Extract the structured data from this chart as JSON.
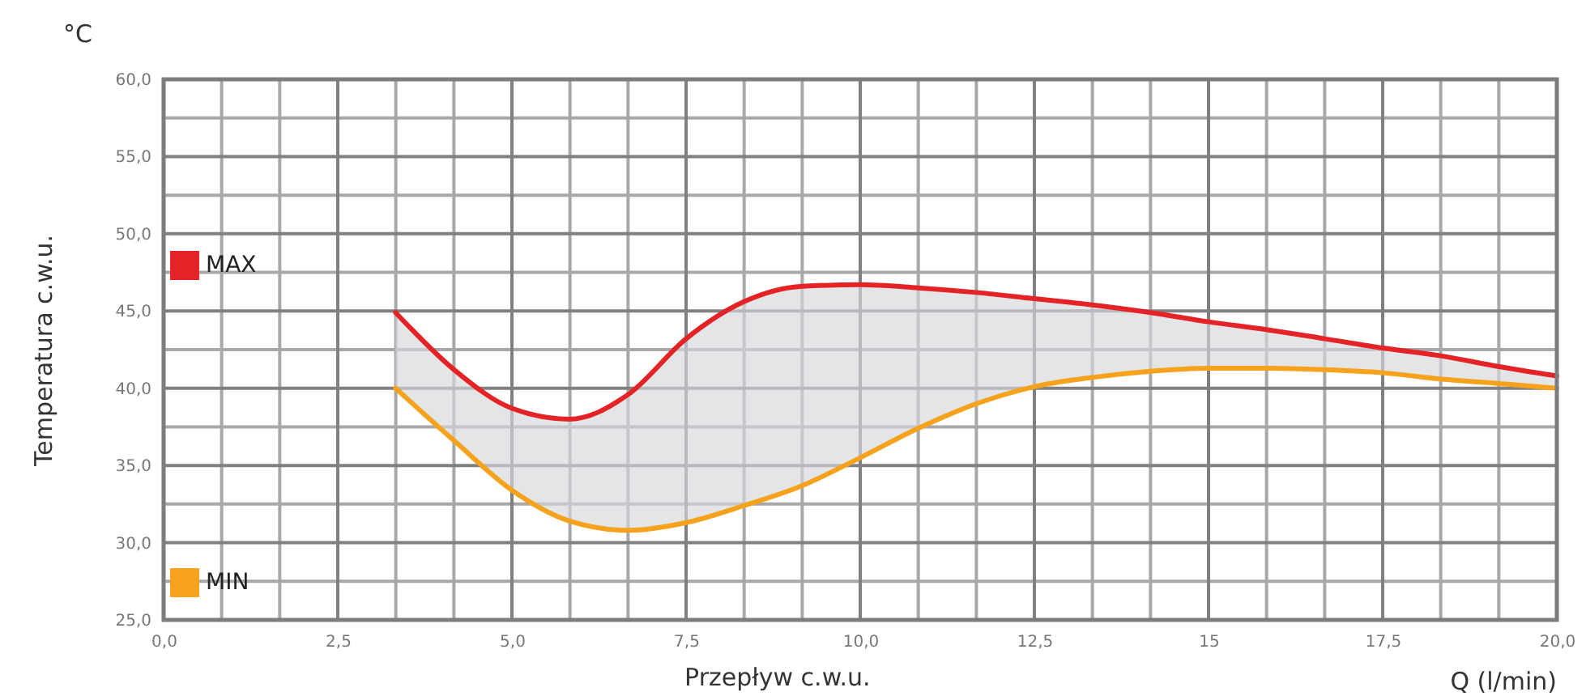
{
  "chart_data": {
    "type": "line",
    "ylabel": "Temperatura c.w.u.",
    "xlabel": "Przepływ c.w.u.",
    "annotations": [
      "°C",
      "Q (l/min)"
    ],
    "x": [
      3.33,
      4.17,
      5,
      5.83,
      6.67,
      7.5,
      8.33,
      9.17,
      10,
      10.83,
      11.67,
      12.5,
      13.33,
      14.17,
      15,
      15.83,
      16.67,
      17.5,
      18.33,
      19.17,
      20
    ],
    "series": [
      {
        "name": "MAX",
        "color": "#e42327",
        "values": [
          44.9,
          41.2,
          38.7,
          38.0,
          39.6,
          43.2,
          45.6,
          46.6,
          46.7,
          46.5,
          46.2,
          45.8,
          45.4,
          44.9,
          44.3,
          43.8,
          43.2,
          42.6,
          42.1,
          41.4,
          40.8
        ],
        "upper": [
          44.9,
          41.2,
          38.7,
          38.0,
          39.6,
          43.2,
          45.6,
          46.6,
          46.7,
          46.5,
          46.2,
          45.8,
          45.4,
          44.9,
          44.3,
          43.8,
          43.2,
          42.6,
          42.1,
          41.4,
          40.8
        ],
        "lower": [
          40.0,
          36.6,
          33.4,
          31.4,
          30.8,
          31.3,
          32.4,
          33.7,
          35.5,
          37.4,
          39.0,
          40.1,
          40.7,
          41.1,
          41.3,
          41.3,
          41.2,
          41.0,
          40.6,
          40.3,
          40.0
        ]
      },
      {
        "name": "MIN",
        "color": "#f6a21d",
        "values": [
          40.0,
          36.6,
          33.4,
          31.4,
          30.8,
          31.3,
          32.4,
          33.7,
          35.5,
          37.4,
          39.0,
          40.1,
          40.7,
          41.1,
          41.3,
          41.3,
          41.2,
          41.0,
          40.6,
          40.3,
          40.0
        ]
      }
    ],
    "xlim": [
      0,
      20
    ],
    "ylim": [
      25,
      60
    ],
    "xticks": [
      {
        "value": 0,
        "label": "0,0"
      },
      {
        "value": 0.833,
        "label": null
      },
      {
        "value": 1.667,
        "label": null
      },
      {
        "value": 2.5,
        "label": "2,5"
      },
      {
        "value": 3.333,
        "label": null
      },
      {
        "value": 4.167,
        "label": null
      },
      {
        "value": 5,
        "label": "5,0"
      },
      {
        "value": 5.833,
        "label": null
      },
      {
        "value": 6.667,
        "label": null
      },
      {
        "value": 7.5,
        "label": "7,5"
      },
      {
        "value": 8.333,
        "label": null
      },
      {
        "value": 9.167,
        "label": null
      },
      {
        "value": 10,
        "label": "10,0"
      },
      {
        "value": 10.833,
        "label": null
      },
      {
        "value": 11.667,
        "label": null
      },
      {
        "value": 12.5,
        "label": "12,5"
      },
      {
        "value": 13.333,
        "label": null
      },
      {
        "value": 14.167,
        "label": null
      },
      15,
      {
        "value": 15.833,
        "label": null
      },
      {
        "value": 16.667,
        "label": null
      },
      {
        "value": 17.5,
        "label": "17,5"
      },
      {
        "value": 18.333,
        "label": null
      },
      {
        "value": 19.167,
        "label": null
      },
      {
        "value": 20,
        "label": "20,0"
      }
    ],
    "yticks": [
      {
        "value": 25,
        "label": "25,0"
      },
      {
        "value": 27.5,
        "label": null
      },
      {
        "value": 30,
        "label": "30,0"
      },
      {
        "value": 32.5,
        "label": null
      },
      {
        "value": 35,
        "label": "35,0"
      },
      {
        "value": 37.5,
        "label": null
      },
      {
        "value": 40,
        "label": "40,0"
      },
      {
        "value": 42.5,
        "label": null
      },
      {
        "value": 45,
        "label": "45,0"
      },
      {
        "value": 47.5,
        "label": null
      },
      {
        "value": 50,
        "label": "50,0"
      },
      {
        "value": 52.5,
        "label": null
      },
      {
        "value": 55,
        "label": "55,0"
      },
      {
        "value": 57.5,
        "label": null
      },
      {
        "value": 60,
        "label": "60,0"
      }
    ],
    "grid": true,
    "legend": "left",
    "line_style": "solid",
    "marker": "none"
  }
}
